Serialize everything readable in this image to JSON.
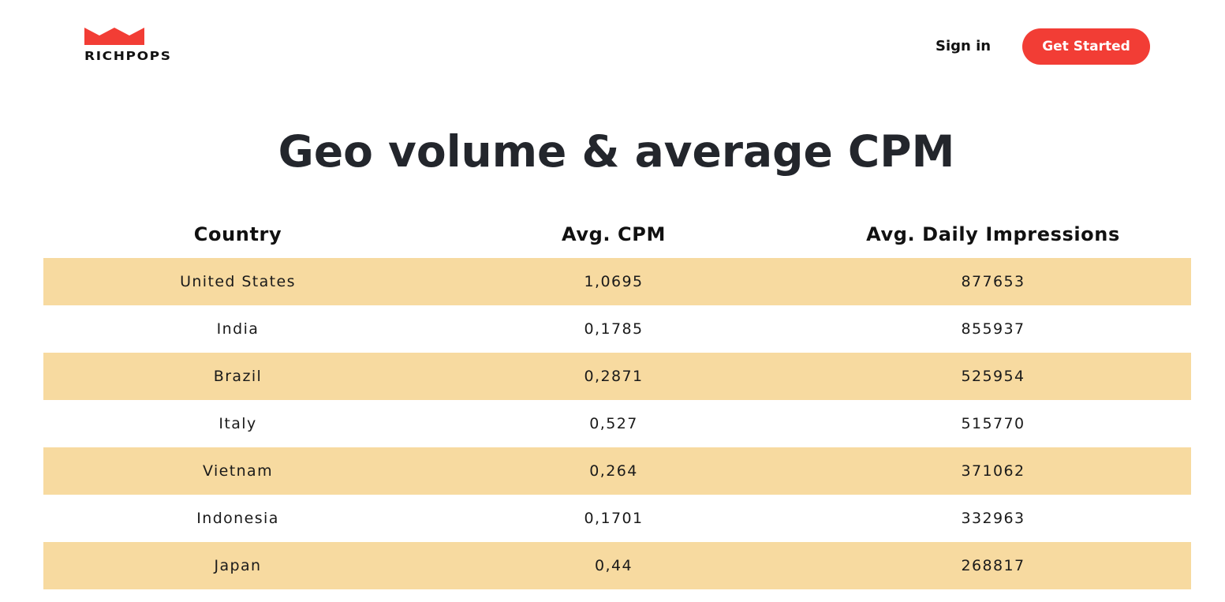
{
  "header": {
    "logo_text": "RICHPOPS",
    "signin_label": "Sign in",
    "get_started_label": "Get Started"
  },
  "main": {
    "title": "Geo volume & average CPM",
    "table": {
      "columns": [
        "Country",
        "Avg. CPM",
        "Avg. Daily Impressions"
      ],
      "rows": [
        [
          "United States",
          "1,0695",
          "877653"
        ],
        [
          "India",
          "0,1785",
          "855937"
        ],
        [
          "Brazil",
          "0,2871",
          "525954"
        ],
        [
          "Italy",
          "0,527",
          "515770"
        ],
        [
          "Vietnam",
          "0,264",
          "371062"
        ],
        [
          "Indonesia",
          "0,1701",
          "332963"
        ],
        [
          "Japan",
          "0,44",
          "268817"
        ]
      ]
    }
  },
  "colors": {
    "accent": "#f23d35",
    "row_highlight": "#f7daa0",
    "title_text": "#23262c"
  },
  "icons": {
    "logo": "crown-icon"
  }
}
